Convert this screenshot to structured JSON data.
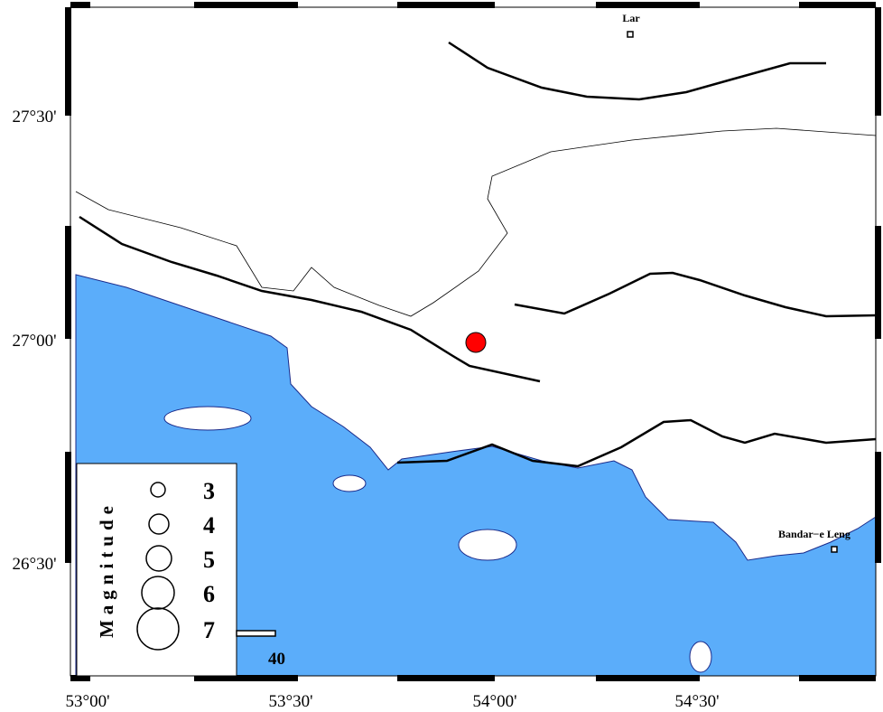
{
  "map": {
    "lat_labels": [
      "27°30'",
      "27°00'",
      "26°30'"
    ],
    "lon_labels": [
      "53°00'",
      "53°30'",
      "54°00'",
      "54°30'"
    ],
    "cities": [
      {
        "name": "Lar"
      },
      {
        "name": "Bandar−e Leng"
      }
    ],
    "legend": {
      "title": "Magnitude",
      "labels": [
        "3",
        "4",
        "5",
        "6",
        "7"
      ]
    },
    "scale_label": "40"
  }
}
